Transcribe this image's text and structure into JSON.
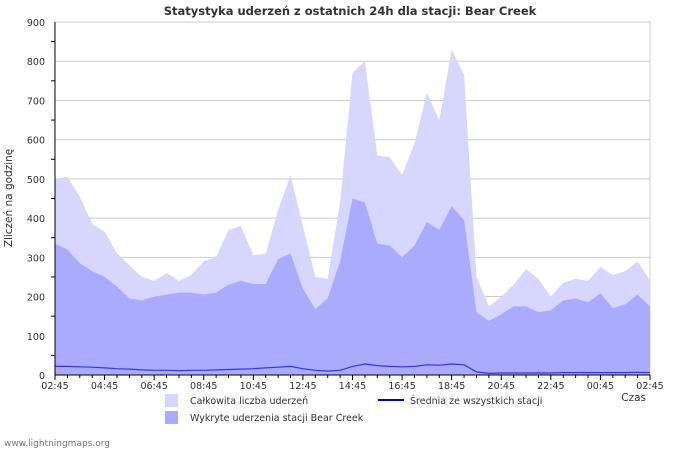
{
  "chart_data": {
    "type": "area",
    "title": "Statystyka uderzeń z ostatnich 24h dla stacji: Bear Creek",
    "xlabel": "Czas",
    "ylabel": "Zliczeń na godzinę",
    "ylim": [
      0,
      900
    ],
    "yticks": [
      0,
      100,
      200,
      300,
      400,
      500,
      600,
      700,
      800,
      900
    ],
    "xtick_labels": [
      "02:45",
      "04:45",
      "06:45",
      "08:45",
      "10:45",
      "12:45",
      "14:45",
      "16:45",
      "18:45",
      "20:45",
      "22:45",
      "00:45",
      "02:45"
    ],
    "grid": true,
    "legend_position": "bottom",
    "x": [
      "02:45",
      "03:15",
      "03:45",
      "04:15",
      "04:45",
      "05:15",
      "05:45",
      "06:15",
      "06:45",
      "07:15",
      "07:45",
      "08:15",
      "08:45",
      "09:15",
      "09:45",
      "10:15",
      "10:45",
      "11:15",
      "11:45",
      "12:15",
      "12:45",
      "13:15",
      "13:45",
      "14:15",
      "14:45",
      "15:15",
      "15:45",
      "16:15",
      "16:45",
      "17:15",
      "17:45",
      "18:15",
      "18:45",
      "19:15",
      "19:45",
      "20:15",
      "20:45",
      "21:15",
      "21:45",
      "22:15",
      "22:45",
      "23:15",
      "23:45",
      "00:15",
      "00:45",
      "01:15",
      "01:45",
      "02:15",
      "02:45"
    ],
    "series": [
      {
        "name": "Całkowita liczba uderzeń",
        "style": "area",
        "color": "#d6d6ff",
        "values": [
          500,
          505,
          455,
          385,
          365,
          310,
          280,
          250,
          240,
          260,
          240,
          255,
          290,
          300,
          370,
          380,
          305,
          310,
          420,
          510,
          380,
          250,
          245,
          440,
          770,
          800,
          560,
          555,
          510,
          590,
          720,
          650,
          830,
          765,
          250,
          175,
          200,
          230,
          270,
          245,
          200,
          235,
          245,
          240,
          275,
          255,
          265,
          290,
          240
        ]
      },
      {
        "name": "Wykryte uderzenia stacji Bear Creek",
        "style": "area",
        "color": "#aaaaff",
        "values": [
          335,
          320,
          285,
          265,
          250,
          225,
          195,
          190,
          200,
          205,
          210,
          210,
          205,
          210,
          230,
          240,
          232,
          232,
          295,
          310,
          220,
          168,
          195,
          290,
          450,
          440,
          335,
          330,
          300,
          330,
          390,
          370,
          430,
          395,
          160,
          138,
          155,
          175,
          175,
          160,
          165,
          190,
          195,
          185,
          208,
          170,
          180,
          205,
          175
        ]
      },
      {
        "name": "Średnia ze wszystkich stacji",
        "style": "line",
        "color": "#3333ee",
        "values": [
          22,
          22,
          21,
          20,
          18,
          16,
          15,
          13,
          12,
          12,
          11,
          12,
          12,
          13,
          14,
          15,
          16,
          18,
          20,
          22,
          16,
          12,
          10,
          12,
          22,
          28,
          24,
          22,
          21,
          22,
          26,
          25,
          28,
          26,
          8,
          4,
          5,
          5,
          5,
          5,
          5,
          6,
          6,
          6,
          6,
          6,
          6,
          7,
          6
        ]
      }
    ]
  },
  "footer": "www.lightningmaps.org"
}
